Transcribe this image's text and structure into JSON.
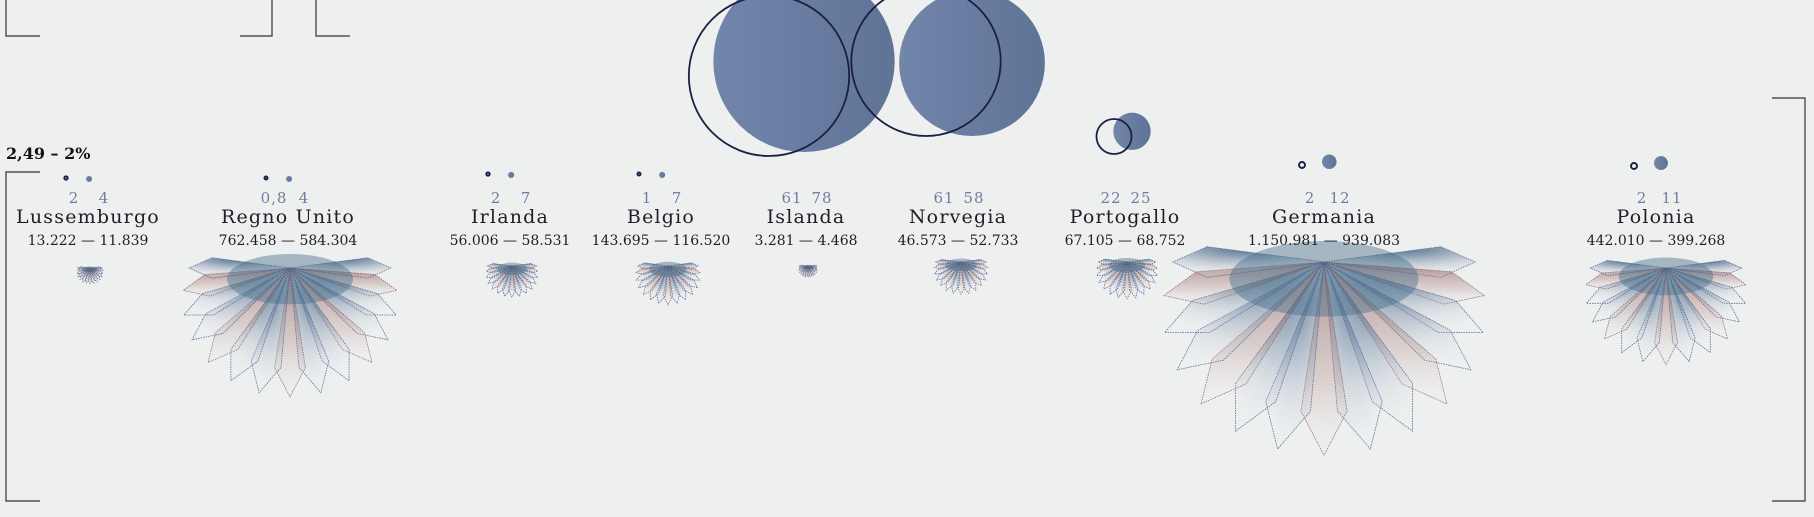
{
  "legend_text": "2,49 – 2%",
  "colors": {
    "background": "#eef0ef",
    "bubble_fill": "#6e82a8",
    "bubble_outline": "#1b1f45",
    "number": "#6f7da0",
    "petal_blue": "#26506f",
    "petal_red": "#8a3320",
    "petal_outline": "#3d3f86"
  },
  "countries": [
    {
      "name": "Lussemburgo",
      "a": "2",
      "b": "4",
      "pop": "13.222 — 11.839",
      "va": 2,
      "vb": 4,
      "p1": 13222,
      "p2": 11839
    },
    {
      "name": "Regno Unito",
      "a": "0,8",
      "b": "4",
      "pop": "762.458 — 584.304",
      "va": 0.8,
      "vb": 4,
      "p1": 762458,
      "p2": 584304
    },
    {
      "name": "Irlanda",
      "a": "2",
      "b": "7",
      "pop": "56.006 — 58.531",
      "va": 2,
      "vb": 7,
      "p1": 56006,
      "p2": 58531
    },
    {
      "name": "Belgio",
      "a": "1",
      "b": "7",
      "pop": "143.695 — 116.520",
      "va": 1,
      "vb": 7,
      "p1": 143695,
      "p2": 116520
    },
    {
      "name": "Islanda",
      "a": "61",
      "b": "78",
      "pop": "3.281 — 4.468",
      "va": 61,
      "vb": 78,
      "p1": 3281,
      "p2": 4468
    },
    {
      "name": "Norvegia",
      "a": "61",
      "b": "58",
      "pop": "46.573 — 52.733",
      "va": 61,
      "vb": 58,
      "p1": 46573,
      "p2": 52733
    },
    {
      "name": "Portogallo",
      "a": "22",
      "b": "25",
      "pop": "67.105 — 68.752",
      "va": 22,
      "vb": 25,
      "p1": 67105,
      "p2": 68752
    },
    {
      "name": "Germania",
      "a": "2",
      "b": "12",
      "pop": "1.150.981 — 939.083",
      "va": 2,
      "vb": 12,
      "p1": 1150981,
      "p2": 939083
    },
    {
      "name": "Polonia",
      "a": "2",
      "b": "11",
      "pop": "442.010 — 399.268",
      "va": 2,
      "vb": 11,
      "p1": 442010,
      "p2": 399268
    }
  ]
}
